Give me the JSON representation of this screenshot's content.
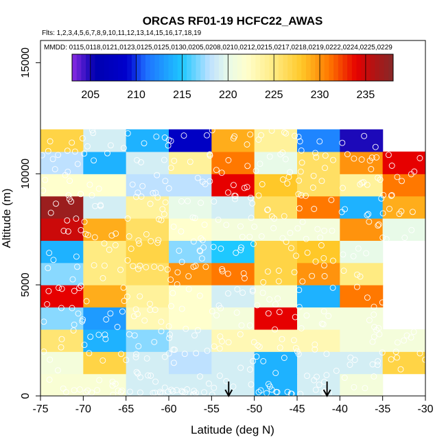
{
  "chart_data": {
    "type": "heatmap",
    "title": "ORCAS RF01-19 HCFC22_AWAS",
    "flights_note": "Flts: 1,2,3,4,5,6,7,8,9,10,11,12,13,14,15,16,17,18,19",
    "dates_note": "MMDD: 0115,0118,0121,0123,0125,0125,0130,0205,0208,0210,0212,0215,0217,0218,0219,0222,0224,0225,0229",
    "xlabel": "Latitude (deg N)",
    "ylabel": "Altitude (m)",
    "xlim": [
      -75,
      -30
    ],
    "ylim": [
      0,
      16000
    ],
    "xticks": [
      -75,
      -70,
      -65,
      -60,
      -55,
      -50,
      -45,
      -40,
      -35,
      -30
    ],
    "xtick_labels": [
      "-75",
      "-70",
      "-65",
      "-60",
      "-55",
      "-50",
      "-45",
      "-40",
      "-35",
      "-30"
    ],
    "yticks": [
      0,
      5000,
      10000,
      15000
    ],
    "ytick_labels": [
      "0",
      "5000",
      "10000",
      "15000"
    ],
    "colorbar": {
      "range": [
        203,
        238
      ],
      "ticks": [
        205,
        210,
        215,
        220,
        225,
        230,
        235
      ],
      "tick_labels": [
        "205",
        "210",
        "215",
        "220",
        "225",
        "230",
        "235"
      ]
    },
    "cell_width_deg": 5,
    "cell_height_m": 1000,
    "x_starts": [
      -75,
      -70,
      -65,
      -60,
      -55,
      -50,
      -45,
      -40,
      -35
    ],
    "rows": [
      {
        "alt_bottom": 0,
        "values": [
          221.5,
          221.5,
          219,
          219,
          219,
          214,
          219,
          221,
          null
        ]
      },
      {
        "alt_bottom": 1000,
        "values": [
          221,
          227,
          219,
          218,
          219,
          214,
          219,
          219,
          227
        ]
      },
      {
        "alt_bottom": 2000,
        "values": [
          225.5,
          214,
          217,
          219,
          223,
          223,
          223,
          221,
          221
        ]
      },
      {
        "alt_bottom": 3000,
        "values": [
          217,
          213,
          223,
          222,
          221,
          234,
          221,
          221,
          null
        ]
      },
      {
        "alt_bottom": 4000,
        "values": [
          234,
          229,
          224,
          222,
          219,
          221,
          214,
          231,
          null
        ]
      },
      {
        "alt_bottom": 5000,
        "values": [
          217,
          225,
          226,
          230,
          231,
          227,
          230,
          225,
          null
        ]
      },
      {
        "alt_bottom": 6000,
        "values": [
          214,
          225,
          227,
          217,
          215,
          227,
          228,
          220,
          null
        ]
      },
      {
        "alt_bottom": 7000,
        "values": [
          235,
          229,
          226,
          222,
          221,
          221,
          221,
          230,
          220
        ]
      },
      {
        "alt_bottom": 8000,
        "values": [
          237,
          219,
          224,
          220,
          219,
          226,
          231,
          214,
          229
        ]
      },
      {
        "alt_bottom": 9000,
        "values": [
          222,
          222,
          218,
          218,
          234,
          228,
          226,
          224,
          231
        ]
      },
      {
        "alt_bottom": 10000,
        "values": [
          218,
          214,
          219,
          224,
          231,
          220,
          226,
          230,
          234
        ]
      },
      {
        "alt_bottom": 11000,
        "values": [
          227,
          219,
          214,
          208,
          229,
          224,
          212,
          205,
          null
        ]
      }
    ],
    "arrow_latitudes": [
      -53,
      -41.5
    ]
  }
}
